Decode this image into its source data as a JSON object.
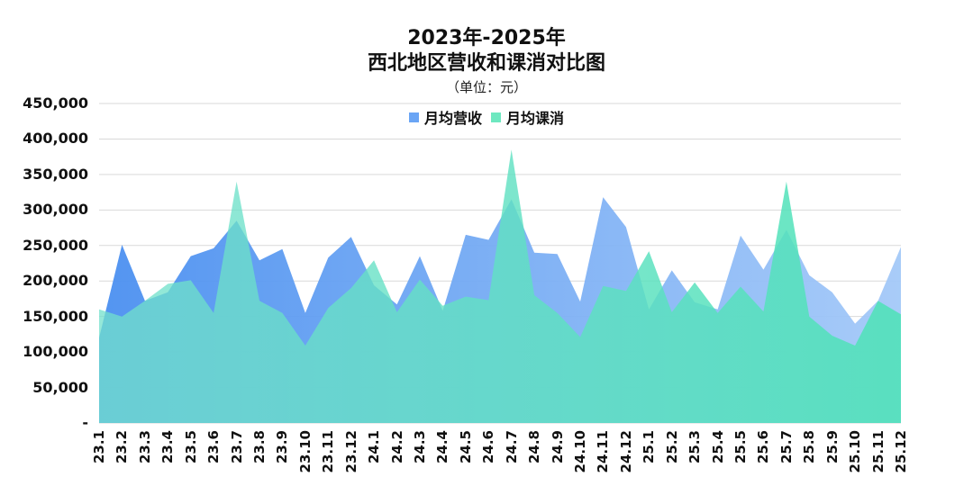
{
  "chart": {
    "title_line1": "2023年-2025年",
    "title_line2": "西北地区营收和课消对比图",
    "subtitle": "（单位：元）",
    "legend": [
      {
        "label": "月均营收",
        "color": "#6aa5f5"
      },
      {
        "label": "月均课消",
        "color": "#6ee8c0"
      }
    ]
  },
  "chart_data": {
    "type": "area",
    "title": "2023年-2025年 西北地区营收和课消对比图",
    "subtitle": "（单位：元）",
    "xlabel": "",
    "ylabel": "",
    "ylim": [
      0,
      450000
    ],
    "yticks": [
      "-",
      "50,000",
      "100,000",
      "150,000",
      "200,000",
      "250,000",
      "300,000",
      "350,000",
      "400,000",
      "450,000"
    ],
    "grid": true,
    "legend_position": "top",
    "categories": [
      "23.1",
      "23.2",
      "23.3",
      "23.4",
      "23.5",
      "23.6",
      "23.7",
      "23.8",
      "23.9",
      "23.10",
      "23.11",
      "23.12",
      "24.1",
      "24.2",
      "24.3",
      "24.4",
      "24.5",
      "24.6",
      "24.7",
      "24.8",
      "24.9",
      "24.10",
      "24.11",
      "24.12",
      "25.1",
      "25.2",
      "25.3",
      "25.4",
      "25.5",
      "25.6",
      "25.7",
      "25.8",
      "25.9",
      "25.10",
      "25.11",
      "25.12"
    ],
    "series": [
      {
        "name": "月均营收",
        "color": "#5b9cf5",
        "values": [
          120000,
          251000,
          172000,
          184000,
          235000,
          246000,
          285000,
          229000,
          245000,
          155000,
          233000,
          262000,
          194000,
          167000,
          235000,
          158000,
          265000,
          258000,
          315000,
          240000,
          238000,
          171000,
          318000,
          276000,
          160000,
          215000,
          170000,
          160000,
          264000,
          216000,
          272000,
          208000,
          184000,
          140000,
          172000,
          248000
        ]
      },
      {
        "name": "月均课消",
        "color": "#5de6b8",
        "values": [
          160000,
          150000,
          172000,
          196000,
          201000,
          155000,
          340000,
          172000,
          155000,
          109000,
          162000,
          190000,
          229000,
          156000,
          202000,
          165000,
          178000,
          173000,
          385000,
          180000,
          155000,
          121000,
          193000,
          186000,
          242000,
          156000,
          198000,
          155000,
          192000,
          157000,
          340000,
          150000,
          123000,
          109000,
          172000,
          153000
        ]
      }
    ]
  }
}
